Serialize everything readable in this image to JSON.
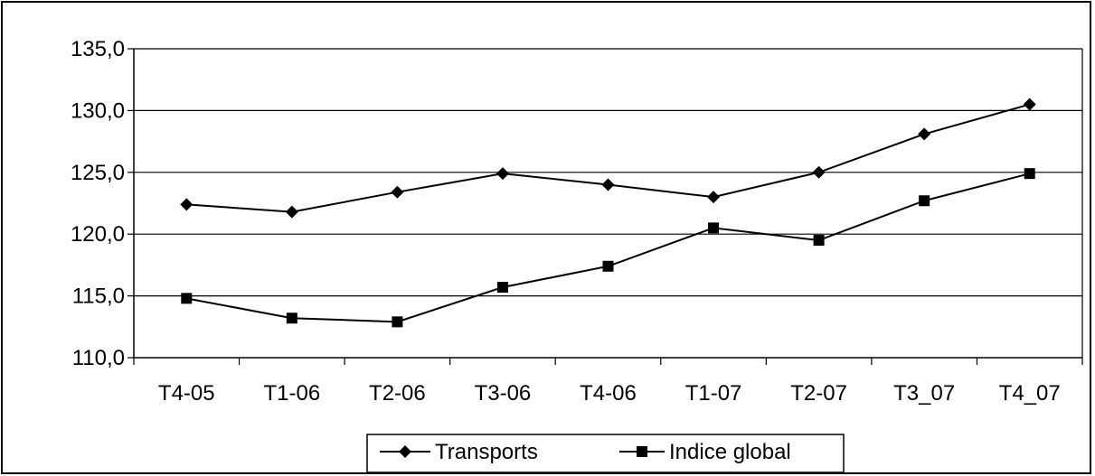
{
  "chart_data": {
    "type": "line",
    "title": "",
    "xlabel": "",
    "ylabel": "",
    "categories": [
      "T4-05",
      "T1-06",
      "T2-06",
      "T3-06",
      "T4-06",
      "T1-07",
      "T2-07",
      "T3_07",
      "T4_07"
    ],
    "ylim": [
      110,
      135
    ],
    "yticks": [
      "110,0",
      "115,0",
      "120,0",
      "125,0",
      "130,0",
      "135,0"
    ],
    "grid": true,
    "legend_position": "bottom",
    "series": [
      {
        "name": "Transports",
        "marker": "diamond",
        "color": "#000000",
        "values": [
          122.4,
          121.8,
          123.4,
          124.9,
          124.0,
          123.0,
          125.0,
          128.1,
          130.5
        ]
      },
      {
        "name": "Indice global",
        "marker": "square",
        "color": "#000000",
        "values": [
          114.8,
          113.2,
          112.9,
          115.7,
          117.4,
          120.5,
          119.5,
          122.7,
          124.9
        ]
      }
    ]
  }
}
